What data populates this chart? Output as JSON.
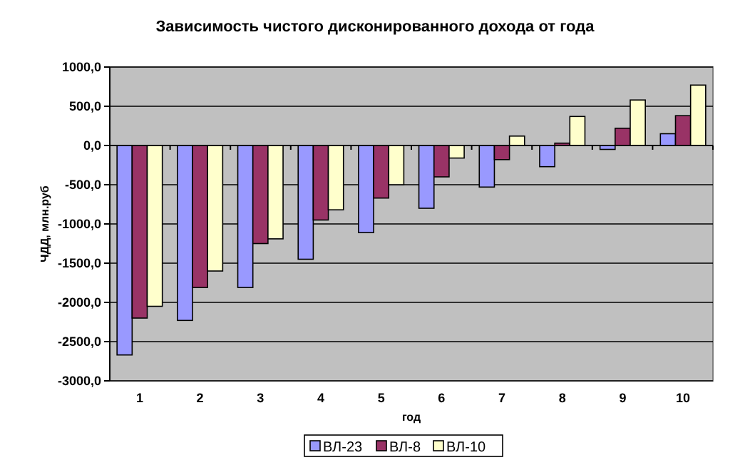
{
  "chart_data": {
    "type": "bar",
    "title": "Зависимость чистого дисконированного дохода от года",
    "xlabel": "год",
    "ylabel": "ЧДД, млн.руб",
    "categories": [
      "1",
      "2",
      "3",
      "4",
      "5",
      "6",
      "7",
      "8",
      "9",
      "10"
    ],
    "series": [
      {
        "name": "ВЛ-23",
        "color": "#9999ff",
        "values": [
          -2670,
          -2230,
          -1810,
          -1450,
          -1110,
          -800,
          -530,
          -270,
          -50,
          150
        ]
      },
      {
        "name": "ВЛ-8",
        "color": "#993366",
        "values": [
          -2200,
          -1810,
          -1250,
          -950,
          -670,
          -400,
          -180,
          30,
          220,
          380
        ]
      },
      {
        "name": "ВЛ-10",
        "color": "#ffffcc",
        "values": [
          -2050,
          -1600,
          -1190,
          -820,
          -500,
          -160,
          120,
          370,
          580,
          770
        ]
      }
    ],
    "ylim": [
      -3000,
      1000
    ],
    "yticks": [
      {
        "value": -3000,
        "label": "-3000,0"
      },
      {
        "value": -2500,
        "label": "-2500,0"
      },
      {
        "value": -2000,
        "label": "-2000,0"
      },
      {
        "value": -1500,
        "label": "-1500,0"
      },
      {
        "value": -1000,
        "label": "-1000,0"
      },
      {
        "value": -500,
        "label": "-500,0"
      },
      {
        "value": 0,
        "label": "0,0"
      },
      {
        "value": 500,
        "label": "500,0"
      },
      {
        "value": 1000,
        "label": "1000,0"
      }
    ],
    "grid": "y",
    "legend": "bottom"
  }
}
